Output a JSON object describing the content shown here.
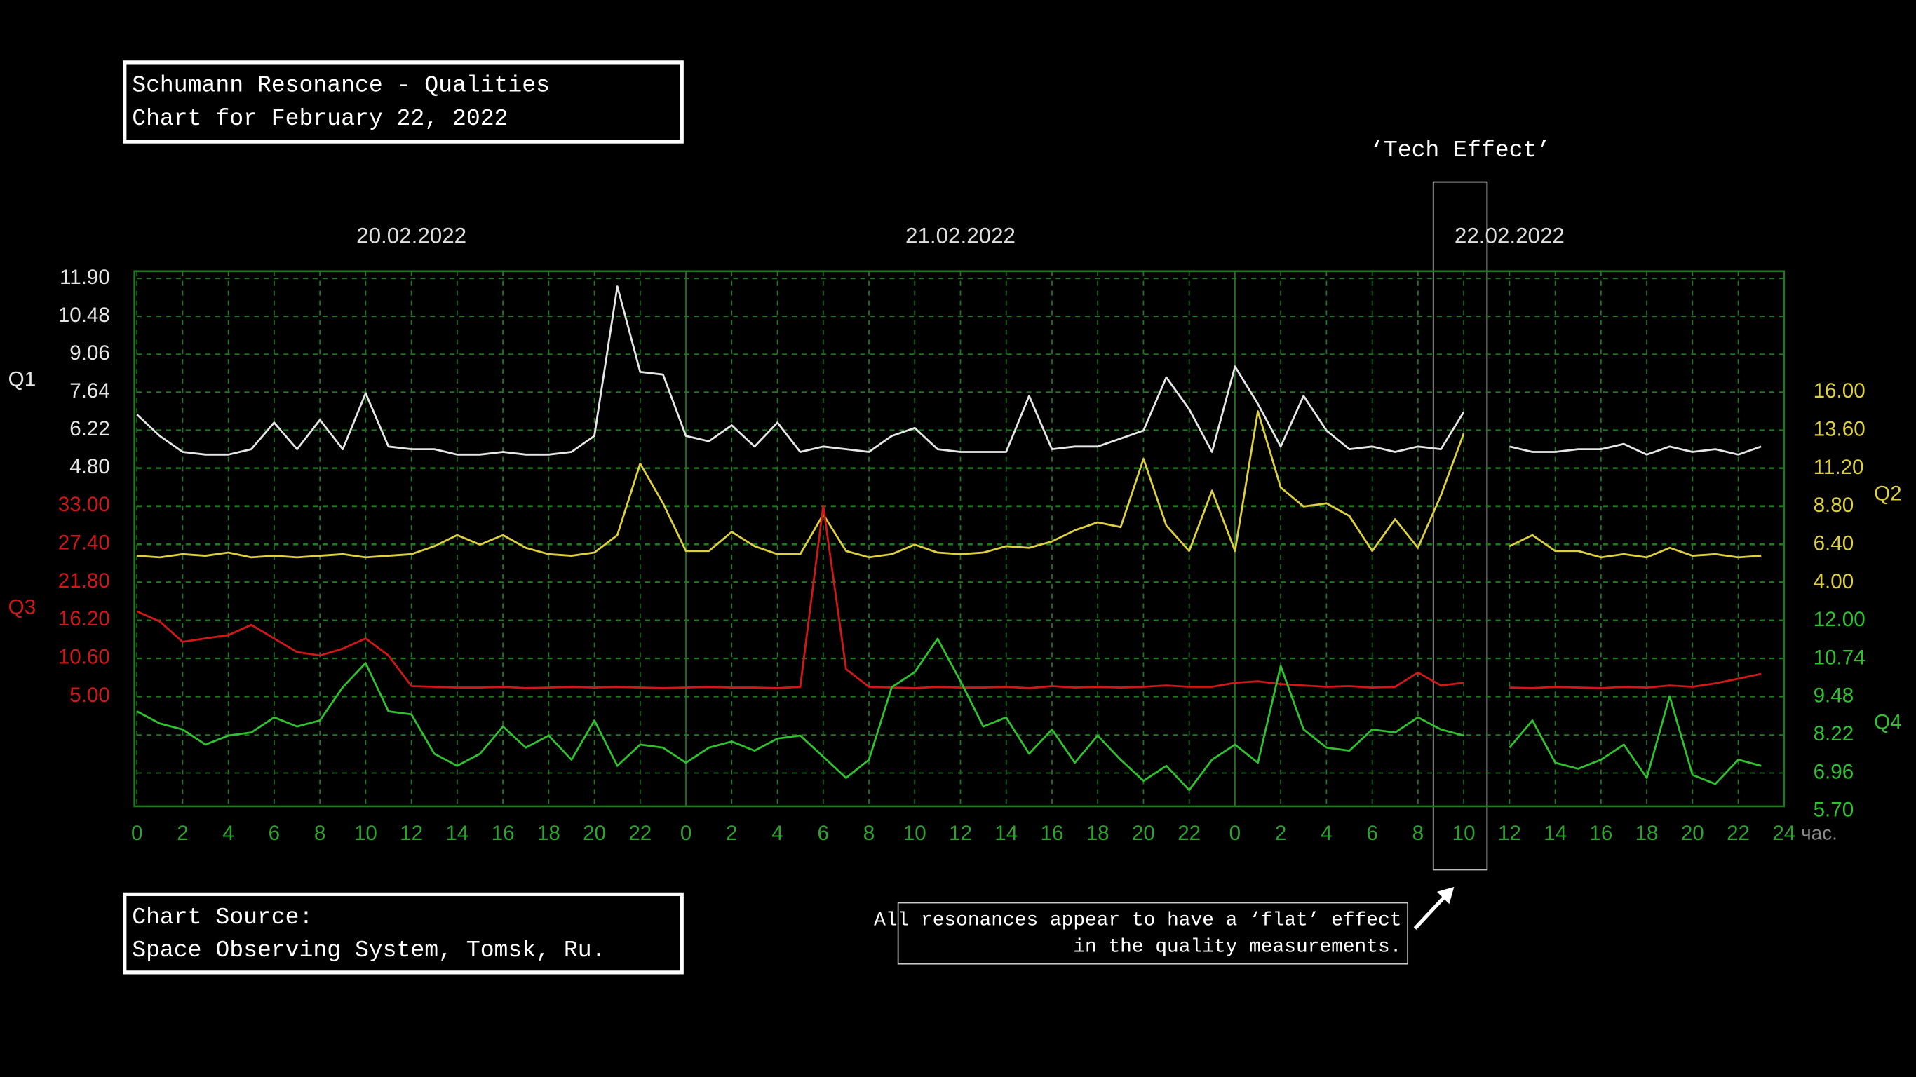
{
  "chart_data": {
    "type": "line",
    "title": "Schumann Resonance - Qualities",
    "subtitle": "Chart for February 22, 2022",
    "source_label": "Chart Source:",
    "source": "Space Observing System, Tomsk, Ru.",
    "annotations": [
      "‘Tech Effect’",
      "All resonances appear to have a ‘flat’ effect",
      "in the quality measurements."
    ],
    "days": [
      "20.02.2022",
      "21.02.2022",
      "22.02.2022"
    ],
    "x_unit": "час.",
    "grid": true,
    "xlim": [
      0,
      72
    ],
    "xticks": [
      0,
      2,
      4,
      6,
      8,
      10,
      12,
      14,
      16,
      18,
      20,
      22,
      {
        "value": 24,
        "label": "0"
      },
      {
        "value": 26,
        "label": "2"
      },
      {
        "value": 28,
        "label": "4"
      },
      {
        "value": 30,
        "label": "6"
      },
      {
        "value": 32,
        "label": "8"
      },
      {
        "value": 34,
        "label": "10"
      },
      {
        "value": 36,
        "label": "12"
      },
      {
        "value": 38,
        "label": "14"
      },
      {
        "value": 40,
        "label": "16"
      },
      {
        "value": 42,
        "label": "18"
      },
      {
        "value": 44,
        "label": "20"
      },
      {
        "value": 46,
        "label": "22"
      },
      {
        "value": 48,
        "label": "0"
      },
      {
        "value": 50,
        "label": "2"
      },
      {
        "value": 52,
        "label": "4"
      },
      {
        "value": 54,
        "label": "6"
      },
      {
        "value": 56,
        "label": "8"
      },
      {
        "value": 58,
        "label": "10"
      },
      {
        "value": 60,
        "label": "12"
      },
      {
        "value": 62,
        "label": "14"
      },
      {
        "value": 64,
        "label": "16"
      },
      {
        "value": 66,
        "label": "18"
      },
      {
        "value": 68,
        "label": "20"
      },
      {
        "value": 70,
        "label": "22"
      },
      {
        "value": 72,
        "label": "24"
      }
    ],
    "x": [
      0,
      1,
      2,
      3,
      4,
      5,
      6,
      7,
      8,
      9,
      10,
      11,
      12,
      13,
      14,
      15,
      16,
      17,
      18,
      19,
      20,
      21,
      22,
      23,
      24,
      25,
      26,
      27,
      28,
      29,
      30,
      31,
      32,
      33,
      34,
      35,
      36,
      37,
      38,
      39,
      40,
      41,
      42,
      43,
      44,
      45,
      46,
      47,
      48,
      49,
      50,
      51,
      52,
      53,
      54,
      55,
      56,
      57,
      58,
      59,
      60,
      61,
      62,
      63,
      64,
      65,
      66,
      67,
      68,
      69,
      70,
      71
    ],
    "series": [
      {
        "name": "Q1",
        "color": "#e6e6e6",
        "side": "left",
        "ylim": [
          4.8,
          11.9
        ],
        "yticks": [
          {
            "value": 11.9,
            "label": "11.90"
          },
          10.48,
          9.06,
          7.64,
          6.22,
          {
            "value": 4.8,
            "label": "4.80"
          }
        ],
        "values": [
          6.8,
          6.0,
          5.4,
          5.3,
          5.3,
          5.5,
          6.5,
          5.5,
          6.6,
          5.5,
          7.6,
          5.6,
          5.5,
          5.5,
          5.3,
          5.3,
          5.4,
          5.3,
          5.3,
          5.4,
          6.0,
          11.6,
          8.4,
          8.3,
          6.0,
          5.8,
          6.4,
          5.6,
          6.5,
          5.4,
          5.6,
          5.5,
          5.4,
          6.0,
          6.3,
          5.5,
          5.4,
          5.4,
          5.4,
          7.5,
          5.5,
          5.6,
          5.6,
          5.9,
          6.2,
          8.2,
          7.0,
          5.4,
          8.6,
          7.2,
          5.6,
          7.5,
          6.2,
          5.5,
          5.6,
          5.4,
          5.6,
          5.5,
          6.9,
          null,
          5.6,
          5.4,
          5.4,
          5.5,
          5.5,
          5.7,
          5.3,
          5.6,
          5.4,
          5.5,
          5.3,
          5.6
        ]
      },
      {
        "name": "Q2",
        "color": "#ddd040",
        "side": "right",
        "ylim": [
          4,
          16
        ],
        "yticks": [
          {
            "value": 16,
            "label": "16.00"
          },
          {
            "value": 13.6,
            "label": "13.60"
          },
          {
            "value": 11.2,
            "label": "11.20"
          },
          {
            "value": 8.8,
            "label": "8.80"
          },
          {
            "value": 6.4,
            "label": "6.40"
          },
          {
            "value": 4,
            "label": "4.00"
          }
        ],
        "values": [
          5.7,
          5.6,
          5.8,
          5.7,
          5.9,
          5.6,
          5.7,
          5.6,
          5.7,
          5.8,
          5.6,
          5.7,
          5.8,
          6.3,
          7.0,
          6.4,
          7.0,
          6.2,
          5.8,
          5.7,
          5.9,
          7.0,
          11.5,
          9.0,
          6.0,
          6.0,
          7.2,
          6.3,
          5.8,
          5.8,
          8.3,
          6.0,
          5.6,
          5.8,
          6.4,
          5.9,
          5.8,
          5.9,
          6.3,
          6.2,
          6.6,
          7.3,
          7.8,
          7.5,
          11.8,
          7.6,
          6.0,
          9.8,
          6.0,
          14.8,
          10.0,
          8.8,
          9.0,
          8.2,
          6.0,
          8.0,
          6.2,
          9.5,
          13.4,
          null,
          6.3,
          7.0,
          6.0,
          6.0,
          5.6,
          5.8,
          5.6,
          6.2,
          5.7,
          5.8,
          5.6,
          5.7
        ]
      },
      {
        "name": "Q3",
        "color": "#d01818",
        "side": "left",
        "ylim": [
          5,
          33
        ],
        "yticks": [
          {
            "value": 33,
            "label": "33.00"
          },
          {
            "value": 27.4,
            "label": "27.40"
          },
          {
            "value": 21.8,
            "label": "21.80"
          },
          {
            "value": 16.2,
            "label": "16.20"
          },
          {
            "value": 10.6,
            "label": "10.60"
          },
          {
            "value": 5,
            "label": "5.00"
          }
        ],
        "values": [
          17.5,
          16.0,
          13.0,
          13.5,
          14.0,
          15.5,
          13.5,
          11.5,
          11.0,
          12.0,
          13.5,
          11.0,
          6.5,
          6.4,
          6.3,
          6.3,
          6.4,
          6.2,
          6.3,
          6.4,
          6.3,
          6.4,
          6.3,
          6.2,
          6.3,
          6.4,
          6.3,
          6.3,
          6.2,
          6.4,
          33.0,
          9.0,
          6.4,
          6.3,
          6.2,
          6.4,
          6.3,
          6.3,
          6.4,
          6.2,
          6.5,
          6.3,
          6.4,
          6.3,
          6.4,
          6.6,
          6.4,
          6.4,
          7.0,
          7.2,
          6.8,
          6.6,
          6.4,
          6.5,
          6.3,
          6.4,
          8.5,
          6.6,
          7.0,
          null,
          6.3,
          6.2,
          6.4,
          6.3,
          6.2,
          6.4,
          6.3,
          6.6,
          6.4,
          6.9,
          7.6,
          8.3
        ]
      },
      {
        "name": "Q4",
        "color": "#30c030",
        "side": "right",
        "ylim": [
          5.7,
          12
        ],
        "yticks": [
          {
            "value": 12,
            "label": "12.00"
          },
          10.74,
          9.48,
          8.22,
          6.96,
          {
            "value": 5.7,
            "label": "5.70"
          }
        ],
        "values": [
          9.0,
          8.6,
          8.4,
          7.9,
          8.2,
          8.3,
          8.8,
          8.5,
          8.7,
          9.8,
          10.6,
          9.0,
          8.9,
          7.6,
          7.2,
          7.6,
          8.5,
          7.8,
          8.2,
          7.4,
          8.7,
          7.2,
          7.9,
          7.8,
          7.3,
          7.8,
          8.0,
          7.7,
          8.1,
          8.2,
          7.5,
          6.8,
          7.4,
          9.8,
          10.3,
          11.4,
          10.0,
          8.5,
          8.8,
          7.6,
          8.4,
          7.3,
          8.2,
          7.4,
          6.7,
          7.2,
          6.4,
          7.4,
          7.9,
          7.3,
          10.5,
          8.4,
          7.8,
          7.7,
          8.4,
          8.3,
          8.8,
          8.4,
          8.2,
          null,
          7.8,
          8.7,
          7.3,
          7.1,
          7.4,
          7.9,
          6.8,
          9.5,
          6.9,
          6.6,
          7.4,
          7.2
        ]
      }
    ]
  }
}
